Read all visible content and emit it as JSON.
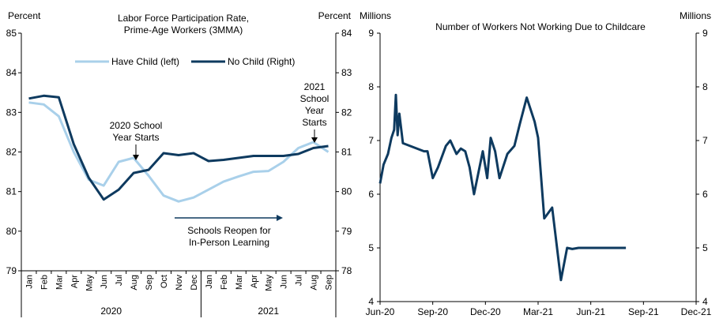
{
  "chart_data": [
    {
      "type": "line",
      "title": "Labor Force Participation Rate,",
      "subtitle": "Prime-Age Workers (3MMA)",
      "ylabel_left": "Percent",
      "ylabel_right": "Percent",
      "ylim_left": [
        79,
        85
      ],
      "ylim_right": [
        78,
        84
      ],
      "yticks_left": [
        "79",
        "80",
        "81",
        "82",
        "83",
        "84",
        "85"
      ],
      "yticks_right": [
        "78",
        "79",
        "80",
        "81",
        "82",
        "83",
        "84"
      ],
      "categories": [
        "Jan",
        "Feb",
        "Mar",
        "Apr",
        "May",
        "Jun",
        "Jul",
        "Aug",
        "Sep",
        "Oct",
        "Nov",
        "Dec",
        "Jan",
        "Feb",
        "Mar",
        "Apr",
        "May",
        "Jun",
        "Jul",
        "Aug",
        "Sep"
      ],
      "year_labels": [
        "2020",
        "2021"
      ],
      "series": [
        {
          "name": "Have Child (left)",
          "axis": "left",
          "color": "#a9d0ea",
          "values": [
            83.25,
            83.2,
            82.9,
            82.0,
            81.3,
            81.15,
            81.75,
            81.85,
            81.4,
            80.9,
            80.75,
            80.85,
            81.05,
            81.25,
            81.38,
            81.5,
            81.52,
            81.75,
            82.1,
            82.25,
            82.0
          ]
        },
        {
          "name": "No Child (Right)",
          "axis": "right",
          "color": "#0e3a5f",
          "values": [
            82.35,
            82.42,
            82.38,
            81.2,
            80.35,
            79.8,
            80.05,
            80.47,
            80.55,
            80.97,
            80.92,
            80.97,
            80.77,
            80.8,
            80.85,
            80.9,
            80.9,
            80.9,
            80.95,
            81.1,
            81.15
          ]
        }
      ],
      "annotations": {
        "school_2020": [
          "2020 School",
          "Year Starts"
        ],
        "school_2021": [
          "2021",
          "School",
          "Year",
          "Starts"
        ],
        "reopen": [
          "Schools Reopen for",
          "In-Person Learning"
        ]
      }
    },
    {
      "type": "line",
      "title": "Number of Workers Not Working Due to Childcare",
      "ylabel_left": "Millions",
      "ylabel_right": "Millions",
      "ylim": [
        4,
        9
      ],
      "yticks": [
        "4",
        "5",
        "6",
        "7",
        "8",
        "9"
      ],
      "xticks": [
        "Jun-20",
        "Sep-20",
        "Dec-20",
        "Mar-21",
        "Jun-21",
        "Sep-21",
        "Dec-21"
      ],
      "series": [
        {
          "name": "Workers not working due to childcare",
          "color": "#0e3a5f",
          "x": [
            0,
            0.2,
            0.45,
            0.65,
            0.8,
            0.9,
            1.0,
            1.1,
            1.3,
            2.5,
            2.7,
            3.0,
            3.3,
            3.75,
            4.0,
            4.35,
            4.6,
            4.85,
            5.1,
            5.35,
            5.85,
            6.1,
            6.3,
            6.55,
            6.8,
            7.25,
            7.65,
            7.95,
            8.35,
            8.8,
            9.0,
            9.35,
            9.8,
            10.3,
            10.65,
            10.95,
            11.3,
            11.65,
            11.9,
            12.3,
            12.7,
            12.85,
            13.1,
            13.4,
            13.7,
            14.0
          ],
          "values": [
            6.2,
            6.55,
            6.75,
            7.05,
            7.2,
            7.85,
            7.1,
            7.5,
            6.95,
            6.8,
            6.8,
            6.3,
            6.5,
            6.9,
            7.0,
            6.75,
            6.85,
            6.8,
            6.5,
            6.0,
            6.8,
            6.3,
            7.05,
            6.8,
            6.3,
            6.75,
            6.9,
            7.3,
            7.8,
            7.35,
            7.05,
            5.55,
            5.75,
            4.4,
            5.0,
            4.98,
            5.0,
            5.0,
            5.0,
            5.0,
            5.0,
            5.0,
            5.0,
            5.0,
            5.0,
            5.0
          ]
        }
      ]
    }
  ]
}
